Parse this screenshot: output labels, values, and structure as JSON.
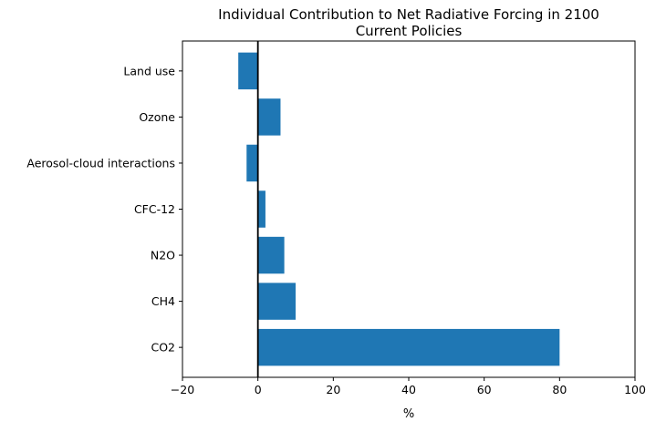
{
  "chart_data": {
    "type": "bar",
    "orientation": "horizontal",
    "title": "Individual Contribution to Net Radiative Forcing in 2100",
    "subtitle": "Current Policies",
    "xlabel": "%",
    "ylabel": "",
    "categories": [
      "CO2",
      "CH4",
      "N2O",
      "CFC-12",
      "Aerosol-cloud interactions",
      "Ozone",
      "Land use"
    ],
    "values": [
      80,
      10,
      7,
      2,
      -3,
      6,
      -5.2
    ],
    "xlim": [
      -20,
      100
    ],
    "xticks": [
      -20,
      0,
      20,
      40,
      60,
      80,
      100
    ],
    "xtick_labels": [
      "−20",
      "0",
      "20",
      "40",
      "60",
      "80",
      "100"
    ],
    "zero_line": true,
    "grid": false,
    "bar_color": "#1f77b4"
  }
}
